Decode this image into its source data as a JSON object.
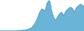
{
  "chart_data": {
    "type": "area",
    "color": "#6ab4d8",
    "series": [
      {
        "color": "#4a9bc0",
        "values": [
          1,
          1,
          1,
          1,
          1,
          1,
          1,
          1,
          1,
          1,
          1,
          1,
          1,
          1,
          1,
          1,
          1,
          1,
          1,
          1,
          1,
          1,
          1,
          2,
          2,
          2,
          2,
          2,
          2,
          2,
          2,
          3,
          3,
          3,
          3,
          4,
          4,
          5,
          5,
          6,
          7,
          8,
          9,
          10,
          12,
          14,
          17,
          20,
          24,
          28,
          33,
          38,
          44,
          50,
          57,
          62,
          66,
          70,
          72,
          72,
          70,
          65,
          68,
          72,
          80,
          90,
          95,
          98,
          100,
          95,
          85,
          70,
          60,
          52,
          45,
          40,
          38,
          35,
          40,
          45,
          48,
          52,
          55,
          58,
          60,
          62,
          58,
          54,
          50,
          55,
          60,
          65,
          68,
          70,
          72,
          74,
          76,
          78,
          78,
          76,
          74,
          70,
          66,
          62,
          68,
          74,
          78,
          80,
          82,
          84,
          86,
          88,
          88,
          86,
          84,
          82,
          80
        ]
      }
    ],
    "xlim": [
      0,
      116
    ],
    "ylim": [
      0,
      102
    ],
    "grid": false,
    "tick_labels": false
  }
}
